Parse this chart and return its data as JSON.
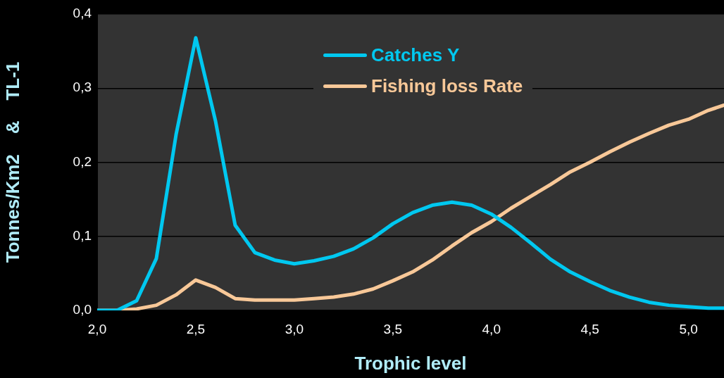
{
  "chart_data": {
    "type": "line",
    "xlabel": "Trophic level",
    "ylabel": "Tonnes/Km2    &    TL-1",
    "x": [
      2.0,
      2.1,
      2.2,
      2.3,
      2.4,
      2.5,
      2.6,
      2.7,
      2.8,
      2.9,
      3.0,
      3.1,
      3.2,
      3.3,
      3.4,
      3.5,
      3.6,
      3.7,
      3.8,
      3.9,
      4.0,
      4.1,
      4.2,
      4.3,
      4.4,
      4.5,
      4.6,
      4.7,
      4.8,
      4.9,
      5.0,
      5.1,
      5.18
    ],
    "series": [
      {
        "name": "Catches Y",
        "color": "#00c8f0",
        "values": [
          0,
          0,
          0.013,
          0.07,
          0.237,
          0.368,
          0.256,
          0.115,
          0.078,
          0.068,
          0.063,
          0.067,
          0.073,
          0.083,
          0.098,
          0.117,
          0.132,
          0.142,
          0.146,
          0.142,
          0.13,
          0.112,
          0.091,
          0.069,
          0.052,
          0.039,
          0.027,
          0.018,
          0.011,
          0.007,
          0.005,
          0.003,
          0.003
        ]
      },
      {
        "name": "Fishing loss Rate",
        "color": "#f8c898",
        "values": [
          0,
          0,
          0.002,
          0.007,
          0.021,
          0.041,
          0.031,
          0.016,
          0.014,
          0.014,
          0.014,
          0.016,
          0.018,
          0.022,
          0.029,
          0.04,
          0.052,
          0.068,
          0.087,
          0.105,
          0.12,
          0.138,
          0.154,
          0.17,
          0.187,
          0.2,
          0.214,
          0.227,
          0.239,
          0.25,
          0.258,
          0.27,
          0.277
        ]
      }
    ],
    "xlim": [
      2,
      5.18
    ],
    "xticks": [
      {
        "value": 2,
        "label": "2,0"
      },
      {
        "value": 2.5,
        "label": "2,5"
      },
      {
        "value": 3,
        "label": "3,0"
      },
      {
        "value": 3.5,
        "label": "3,5"
      },
      {
        "value": 4,
        "label": "4,0"
      },
      {
        "value": 4.5,
        "label": "4,5"
      },
      {
        "value": 5,
        "label": "5,0"
      }
    ],
    "ylim": [
      0,
      0.4
    ],
    "yticks": [
      {
        "value": 0,
        "label": "0,0"
      },
      {
        "value": 0.1,
        "label": "0,1"
      },
      {
        "value": 0.2,
        "label": "0,2"
      },
      {
        "value": 0.3,
        "label": "0,3"
      },
      {
        "value": 0.4,
        "label": "0,4"
      }
    ],
    "grid": "y",
    "legend": "top",
    "marker": "none",
    "line_style": "solid"
  }
}
